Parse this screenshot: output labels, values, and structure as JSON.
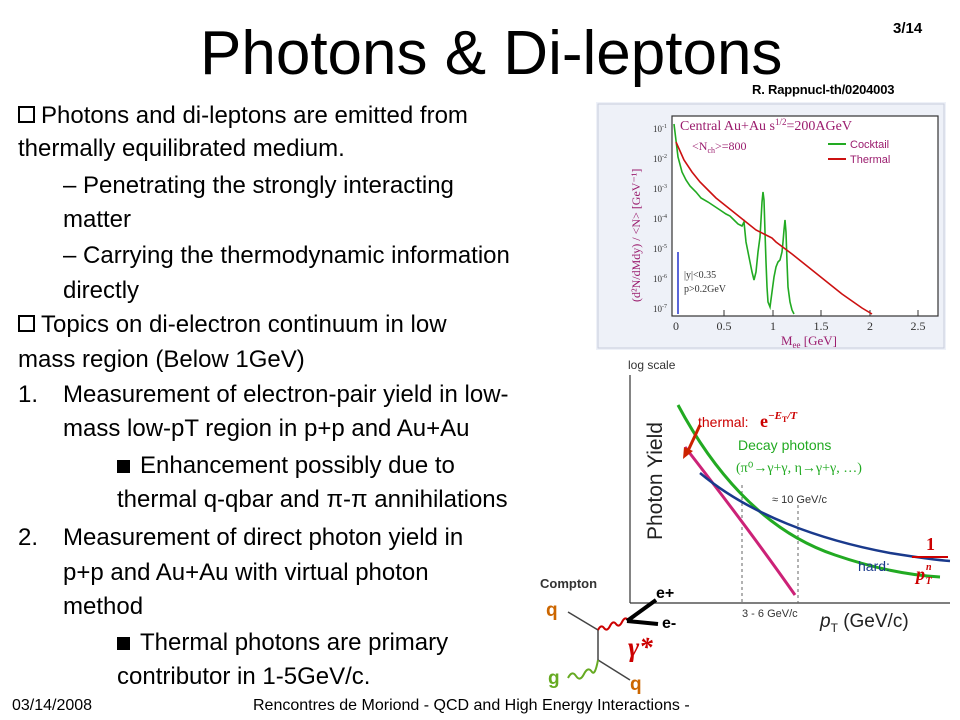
{
  "slide": {
    "title": "Photons & Di-leptons",
    "page": "3/14",
    "reference": "R. Rappnucl-th/0204003",
    "footer_date": "03/14/2008",
    "footer_conf": "Rencontres de Moriond - QCD and High Energy Interactions -"
  },
  "bullets": {
    "b1_line1": "Photons and di-leptons are emitted from",
    "b1_line2": "thermally equilibrated medium.",
    "b1_sub1_line1": "– Penetrating the strongly interacting",
    "b1_sub1_line2": "matter",
    "b1_sub2_line1": "– Carrying the thermodynamic information",
    "b1_sub2_line2": "directly",
    "b2_line1": "Topics on di-electron continuum in low",
    "b2_line2": "mass region (Below 1GeV)",
    "n1_num": "1.",
    "n1_line1": "Measurement of electron-pair yield in low-",
    "n1_line2": "mass low-pT region in p+p and Au+Au",
    "n1_sub_line1": "Enhancement possibly due to",
    "n1_sub_line2": "thermal q-qbar and π-π annihilations",
    "n2_num": "2.",
    "n2_line1": "Measurement of direct photon yield in",
    "n2_line2": "p+p and Au+Au with virtual photon",
    "n2_line3": "method",
    "n2_sub_line1": "Thermal photons are primary",
    "n2_sub_line2": "contributor in 1-5GeV/c."
  },
  "dilepton_plot": {
    "header": "Central Au+Au  s",
    "header_exp": "1/2",
    "header_energy": "=200AGeV",
    "nch": "<N",
    "nch_sub": "ch",
    "nch_val": ">=800",
    "legend_cocktail": "Cocktail",
    "legend_thermal": "Thermal",
    "ylabel": "(d²N",
    "ylabel_rest": "/dMdy) / <N",
    "ylabel_end": "> [GeV⁻¹]",
    "xlabel": "M",
    "xlabel_sub": "ee",
    "xlabel_unit": " [GeV]",
    "cut1": "|y",
    "cut1_rest": "|<0.35",
    "cut2": "p",
    "cut2_rest": ">0.2GeV",
    "xticks": [
      "0",
      "0.5",
      "1",
      "1.5",
      "2",
      "2.5"
    ],
    "yticks": [
      "10",
      "10",
      "10",
      "10",
      "10",
      "10",
      "10"
    ],
    "yexps": [
      "-1",
      "-2",
      "-3",
      "-4",
      "-5",
      "-6",
      "-7"
    ],
    "colors": {
      "cocktail": "#22aa22",
      "thermal": "#cc1111",
      "text": "#9b1d6e",
      "frame_bg": "#f4f6fb"
    }
  },
  "photon_plot": {
    "log_scale": "log scale",
    "ylabel": "Photon Yield",
    "xlabel_p": "p",
    "xlabel_sub": "T",
    "xlabel_unit": " (GeV/c)",
    "thermal_label": "thermal:",
    "thermal_formula": "e",
    "thermal_exp": "−E",
    "thermal_exp_sub": "T",
    "thermal_exp_end": "/T",
    "decay_label": "Decay photons",
    "decay_detail": "(π⁰→γ+γ, η→γ+γ, …)",
    "approx_label": "≈ 10 GeV/c",
    "range_label": "3 - 6 GeV/c",
    "hard_label": "hard:",
    "hard_num": "1",
    "hard_den": "p",
    "hard_den_sup": "n",
    "hard_den_sub": "T",
    "colors": {
      "decay": "#22aa22",
      "thermal": "#cc2277",
      "hard": "#1a3a8c",
      "arrow": "#cc2200",
      "label": "#cc0000",
      "decay_text": "#22aa22",
      "hard_text": "#1a3a8c"
    }
  },
  "feynman": {
    "compton": "Compton",
    "q_top": "q",
    "g_bottom": "g",
    "q_bottom": "q",
    "gamma_star": "γ*",
    "e_plus": "e+",
    "e_minus": "e-",
    "colors": {
      "quark_text": "#cc6600",
      "gluon_text": "#66aa22",
      "gamma_text": "#cc0000",
      "wavy": "#cc0000",
      "gluon": "#66aa22"
    }
  }
}
